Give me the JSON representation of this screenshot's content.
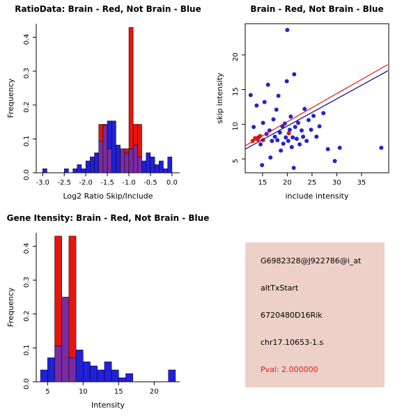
{
  "page": {
    "background": "#FFFFFF"
  },
  "colors": {
    "hist_blue": "#2121D8",
    "hist_red": "#E8140C",
    "hist_overlap": "#7A2BA0",
    "point_blue": "#2424CC",
    "point_red": "#E8140C",
    "line_red": "#E8140C",
    "line_navy": "#00008B",
    "axis": "#000000",
    "info_bg": "#EDD0C8",
    "info_text": "#000000",
    "pval": "#DD2010"
  },
  "info_panel": {
    "lines": [
      "G6982328@J922786@i_at",
      "altTxStart",
      "6720480D16Rik",
      "chr17.10653-1.s"
    ],
    "pval": "Pval: 2.000000"
  },
  "chart_data": [
    {
      "type": "bar",
      "subtype": "overlaid_histogram",
      "title": "RatioData: Brain - Red, Not Brain - Blue",
      "xlabel": "Log2 Ratio Skip/Include",
      "ylabel": "Frequency",
      "legend": {
        "Brain": "red",
        "Not Brain": "blue"
      },
      "bin_start": -3.0,
      "bin_width": 0.1,
      "xlim": [
        -3.15,
        0.18
      ],
      "ylim": [
        0,
        0.44
      ],
      "xticks": [
        -3.0,
        -2.5,
        -2.0,
        -1.5,
        -1.0,
        -0.5,
        0.0
      ],
      "xtick_labels": [
        "-3.0",
        "-2.5",
        "-2.0",
        "-1.5",
        "-1.0",
        "-0.5",
        "0.0"
      ],
      "yticks": [
        0,
        0.1,
        0.2,
        0.3,
        0.4
      ],
      "ytick_labels": [
        "0.0",
        "0.1",
        "0.2",
        "0.3",
        "0.4"
      ],
      "series": [
        {
          "name": "Not Brain",
          "color_key": "hist_blue",
          "values": [
            0.012,
            0,
            0,
            0,
            0,
            0.012,
            0,
            0.012,
            0.024,
            0.012,
            0.035,
            0.047,
            0.059,
            0.094,
            0.141,
            0.153,
            0.153,
            0.082,
            0.071,
            0.059,
            0.071,
            0.082,
            0.047,
            0.035,
            0.059,
            0.047,
            0.024,
            0.035,
            0.012,
            0.047
          ]
        },
        {
          "name": "Brain",
          "color_key": "hist_red",
          "values": [
            0,
            0,
            0,
            0,
            0,
            0,
            0,
            0,
            0,
            0,
            0,
            0,
            0,
            0.143,
            0.143,
            0.071,
            0,
            0,
            0.071,
            0.071,
            0.429,
            0.143,
            0.143,
            0,
            0,
            0,
            0,
            0,
            0,
            0
          ]
        }
      ]
    },
    {
      "type": "scatter",
      "title": "Brain - Red, Not Brain - Blue",
      "xlabel": "include intensity",
      "ylabel": "skip intensity",
      "legend": {
        "Brain": "red",
        "Not Brain": "blue"
      },
      "xlim": [
        11.5,
        40.5
      ],
      "ylim": [
        3,
        24.5
      ],
      "xticks": [
        15,
        20,
        25,
        30,
        35
      ],
      "xtick_labels": [
        "15",
        "20",
        "25",
        "30",
        "35"
      ],
      "yticks": [
        5,
        10,
        15,
        20
      ],
      "ytick_labels": [
        "5",
        "10",
        "15",
        "20"
      ],
      "series": [
        {
          "name": "Not Brain",
          "color_key": "point_blue",
          "points": [
            [
              12.6,
              14.2
            ],
            [
              13.2,
              9.6
            ],
            [
              13.8,
              12.7
            ],
            [
              14.2,
              8.1
            ],
            [
              14.6,
              7.1
            ],
            [
              14.9,
              4.1
            ],
            [
              15.1,
              10.2
            ],
            [
              15.4,
              13.2
            ],
            [
              15.8,
              8.6
            ],
            [
              16.1,
              15.7
            ],
            [
              16.4,
              9.1
            ],
            [
              16.6,
              5.2
            ],
            [
              16.9,
              7.6
            ],
            [
              17.2,
              10.7
            ],
            [
              17.5,
              8.2
            ],
            [
              17.8,
              12.1
            ],
            [
              18.0,
              7.7
            ],
            [
              18.2,
              14.1
            ],
            [
              18.5,
              8.8
            ],
            [
              18.7,
              6.2
            ],
            [
              19.0,
              9.7
            ],
            [
              19.2,
              7.2
            ],
            [
              19.5,
              10.1
            ],
            [
              19.7,
              8.1
            ],
            [
              19.9,
              16.2
            ],
            [
              20.0,
              23.6
            ],
            [
              20.2,
              7.6
            ],
            [
              20.5,
              9.2
            ],
            [
              20.7,
              11.1
            ],
            [
              20.9,
              6.7
            ],
            [
              21.1,
              8.1
            ],
            [
              21.3,
              3.7
            ],
            [
              21.4,
              17.2
            ],
            [
              21.6,
              9.6
            ],
            [
              21.9,
              7.9
            ],
            [
              22.2,
              10.2
            ],
            [
              22.5,
              7.1
            ],
            [
              22.9,
              9.1
            ],
            [
              23.2,
              8.2
            ],
            [
              23.5,
              12.2
            ],
            [
              23.9,
              7.6
            ],
            [
              24.3,
              10.6
            ],
            [
              24.8,
              9.2
            ],
            [
              25.3,
              11.2
            ],
            [
              25.9,
              8.2
            ],
            [
              26.5,
              9.7
            ],
            [
              27.3,
              11.6
            ],
            [
              28.2,
              6.4
            ],
            [
              29.6,
              4.7
            ],
            [
              30.6,
              6.6
            ],
            [
              39.0,
              6.6
            ]
          ]
        },
        {
          "name": "Brain",
          "color_key": "point_red",
          "points": [
            [
              13.0,
              7.6
            ],
            [
              13.5,
              8.0
            ],
            [
              14.0,
              7.8
            ],
            [
              14.5,
              8.3
            ],
            [
              15.1,
              7.7
            ],
            [
              20.3,
              8.7
            ]
          ]
        }
      ],
      "lines": [
        {
          "name": "brain-fit",
          "color_key": "line_red",
          "x1": 11.5,
          "y1": 6.9,
          "x2": 40.3,
          "y2": 18.6
        },
        {
          "name": "notbrain-fit",
          "color_key": "line_navy",
          "x1": 11.5,
          "y1": 6.4,
          "x2": 40.3,
          "y2": 17.7
        }
      ]
    },
    {
      "type": "bar",
      "subtype": "overlaid_histogram",
      "title": "Gene Itensity: Brain - Red, Not Brain - Blue",
      "xlabel": "Intensity",
      "ylabel": "Frequency",
      "legend": {
        "Brain": "red",
        "Not Brain": "blue"
      },
      "bin_start": 4,
      "bin_width": 1,
      "xlim": [
        3.4,
        23.6
      ],
      "ylim": [
        0,
        0.44
      ],
      "xticks": [
        5,
        10,
        15,
        20
      ],
      "xtick_labels": [
        "5",
        "10",
        "15",
        "20"
      ],
      "yticks": [
        0,
        0.1,
        0.2,
        0.3,
        0.4
      ],
      "ytick_labels": [
        "0.0",
        "0.1",
        "0.2",
        "0.3",
        "0.4"
      ],
      "series": [
        {
          "name": "Not Brain",
          "color_key": "hist_blue",
          "values": [
            0.035,
            0.071,
            0.106,
            0.25,
            0.071,
            0.094,
            0.059,
            0.047,
            0.035,
            0.059,
            0.035,
            0.012,
            0.024,
            0,
            0,
            0,
            0,
            0,
            0.035
          ]
        },
        {
          "name": "Brain",
          "color_key": "hist_red",
          "values": [
            0,
            0,
            0.43,
            0.25,
            0.43,
            0,
            0,
            0,
            0,
            0,
            0,
            0,
            0,
            0,
            0,
            0,
            0,
            0,
            0
          ]
        }
      ]
    }
  ]
}
